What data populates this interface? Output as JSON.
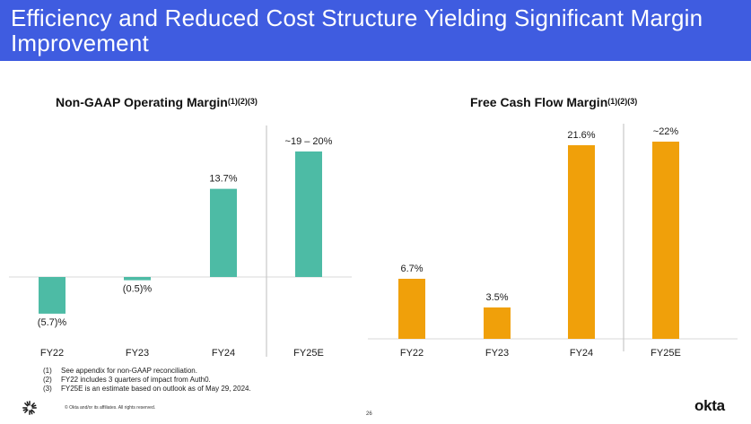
{
  "header": {
    "title": "Efficiency and Reduced Cost Structure Yielding Significant Margin Improvement"
  },
  "colors": {
    "header_bg": "#3f5ce0",
    "left_bars": "#4dbba5",
    "right_bars": "#f0a00a"
  },
  "chart_data": [
    {
      "type": "bar",
      "title": "Non-GAAP Operating Margin",
      "title_refs": "(1)(2)(3)",
      "categories": [
        "FY22",
        "FY23",
        "FY24",
        "FY25E"
      ],
      "values": [
        -5.7,
        -0.5,
        13.7,
        19.5
      ],
      "labels": [
        "(5.7)%",
        "(0.5)%",
        "13.7%",
        "~19 – 20%"
      ],
      "estimate_divider_before": "FY25E",
      "baseline": 0
    },
    {
      "type": "bar",
      "title": "Free Cash Flow Margin",
      "title_refs": "(1)(2)(3)",
      "categories": [
        "FY22",
        "FY23",
        "FY24",
        "FY25E"
      ],
      "values": [
        6.7,
        3.5,
        21.6,
        22
      ],
      "labels": [
        "6.7%",
        "3.5%",
        "21.6%",
        "~22%"
      ],
      "estimate_divider_before": "FY25E",
      "baseline": 0
    }
  ],
  "footnotes": [
    {
      "num": "(1)",
      "text": "See appendix for non-GAAP reconciliation."
    },
    {
      "num": "(2)",
      "text": "FY22 includes 3 quarters of impact from Auth0."
    },
    {
      "num": "(3)",
      "text": "FY25E is an estimate based on outlook as of May 29, 2024."
    }
  ],
  "footer": {
    "copyright": "© Okta and/or its affiliates. All rights reserved.",
    "page_number": "26",
    "brand": "okta",
    "logo_icon": "okta-burst-icon"
  }
}
